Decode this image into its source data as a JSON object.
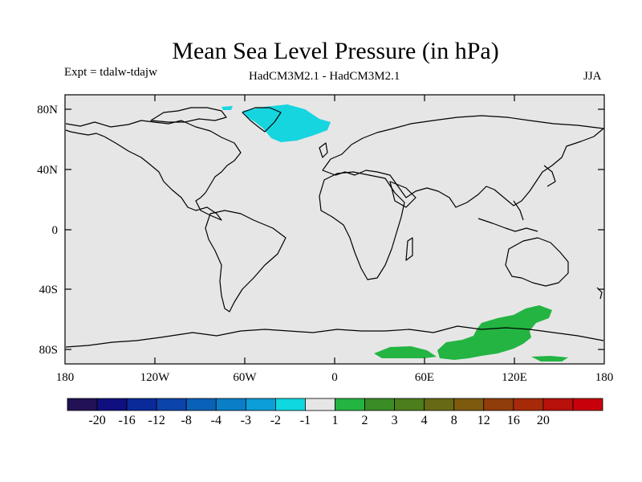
{
  "header": {
    "title": "Mean Sea Level Pressure (in hPa)",
    "experiment": "Expt = tdalw-tdajw",
    "models": "HadCM3M2.1 - HadCM3M2.1",
    "season": "JJA"
  },
  "axes": {
    "lat_ticks": [
      "80N",
      "40N",
      "0",
      "40S",
      "80S"
    ],
    "lon_ticks": [
      "180",
      "120W",
      "60W",
      "0",
      "60E",
      "120E",
      "180"
    ]
  },
  "colorbar": {
    "colors": [
      "#231155",
      "#0f0f7f",
      "#0a2a9a",
      "#0b44aa",
      "#0a62b8",
      "#0a7fc8",
      "#0c9ed8",
      "#0fd8e0",
      "#e6e6e6",
      "#23b442",
      "#3a8c26",
      "#4c7e1c",
      "#676a14",
      "#7d5a0e",
      "#913d0b",
      "#a62a0a",
      "#b8100a",
      "#c8000b"
    ],
    "labels": [
      "-20",
      "-16",
      "-12",
      "-8",
      "-4",
      "-3",
      "-2",
      "-1",
      "1",
      "2",
      "3",
      "4",
      "8",
      "12",
      "16",
      "20"
    ]
  },
  "colors": {
    "ocean": "#e6e6e6",
    "negative_anomaly": "#16d5df",
    "positive_anomaly": "#23b442"
  }
}
